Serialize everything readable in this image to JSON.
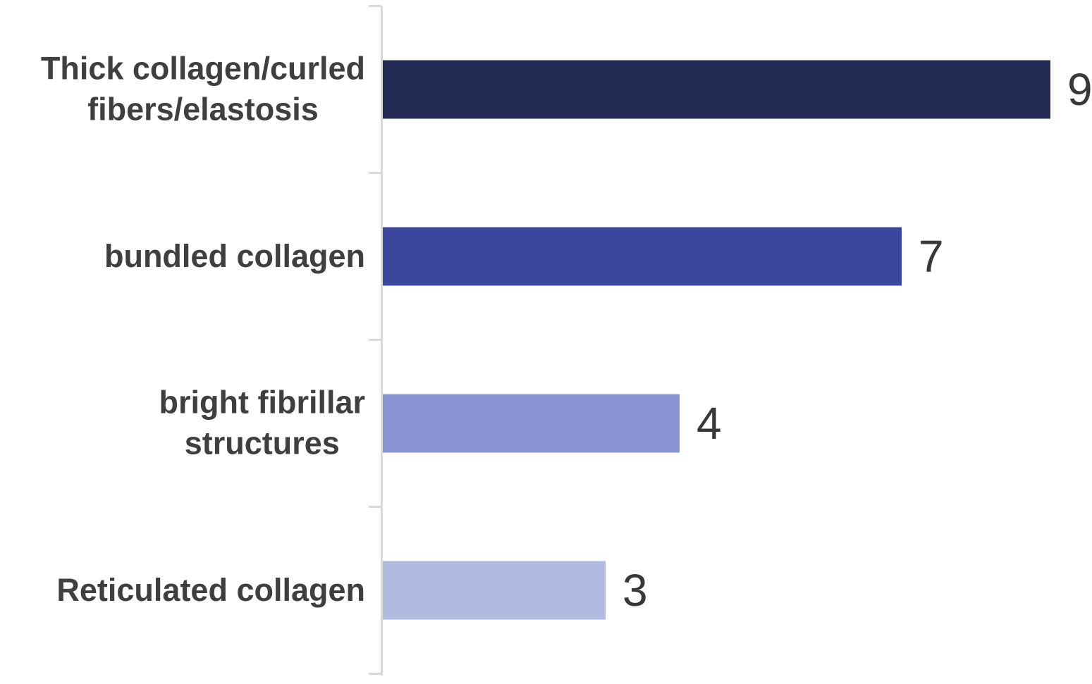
{
  "chart_data": {
    "type": "bar",
    "orientation": "horizontal",
    "title": "",
    "xlabel": "",
    "ylabel": "",
    "categories": [
      "Thick collagen/curled fibers/elastosis",
      "bundled collagen",
      "bright fibrillar structures",
      "Reticulated collagen"
    ],
    "categories_wrapped": [
      [
        "Thick collagen/curled",
        "fibers/elastosis"
      ],
      [
        "bundled collagen"
      ],
      [
        "bright fibrillar",
        "structures"
      ],
      [
        "Reticulated collagen"
      ]
    ],
    "values": [
      9,
      7,
      4,
      3
    ],
    "value_labels": [
      "9",
      "7",
      "4",
      "3"
    ],
    "bar_colors": [
      "#232b55",
      "#3b479c",
      "#8894d1",
      "#b1badf"
    ],
    "axis_color": "#d9d9d9",
    "category_label_color": "#3f3f3f",
    "value_label_color": "#383838",
    "background": "#ffffff",
    "grid": false,
    "legend": false,
    "data_labels_shown": true
  }
}
